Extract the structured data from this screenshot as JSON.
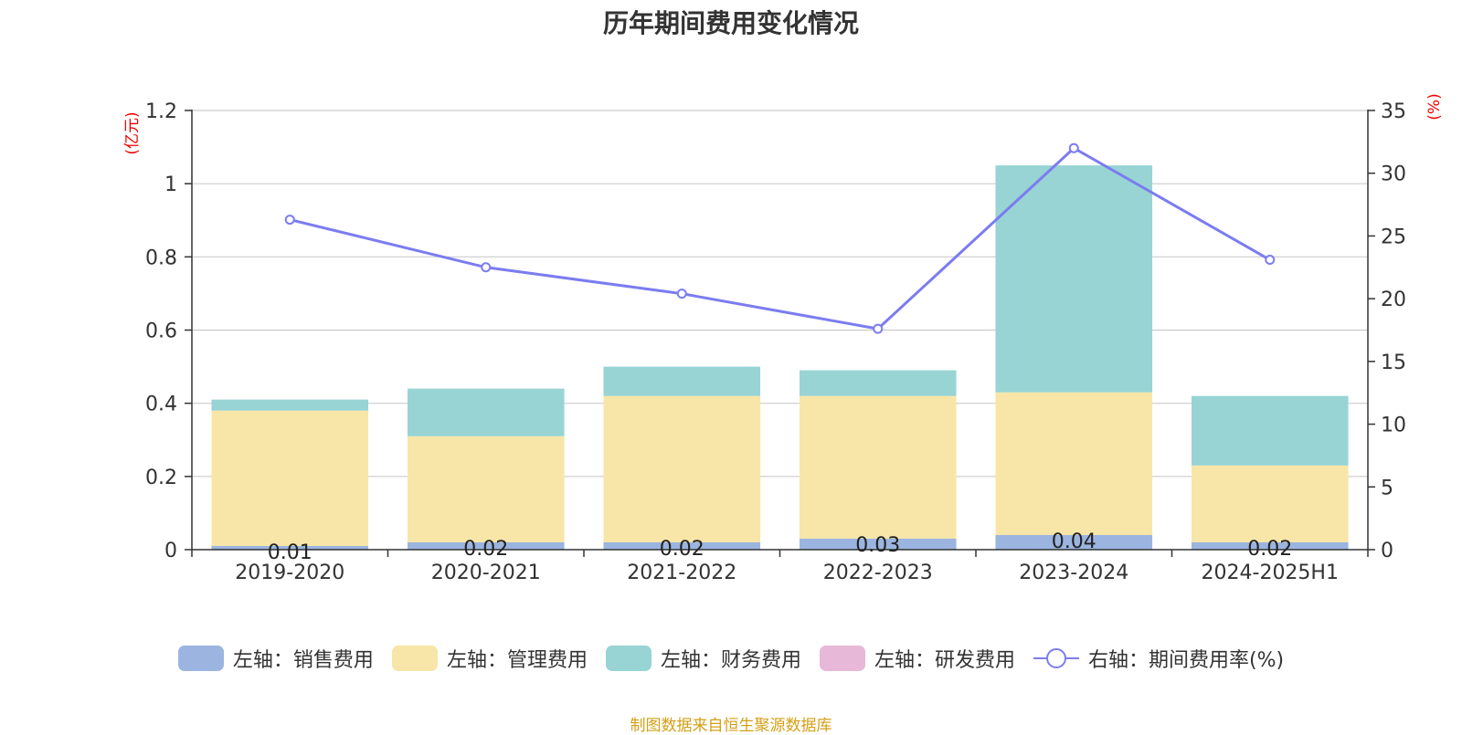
{
  "chart_data": {
    "type": "bar",
    "title": "历年期间费用变化情况",
    "categories": [
      "2019-2020",
      "2020-2021",
      "2021-2022",
      "2022-2023",
      "2023-2024",
      "2024-2025H1"
    ],
    "left_axis": {
      "label": "(亿元)",
      "ylim": [
        0,
        1.2
      ],
      "ticks": [
        "0",
        "0.2",
        "0.4",
        "0.6",
        "0.8",
        "1",
        "1.2"
      ]
    },
    "right_axis": {
      "label": "(%)",
      "ylim": [
        0,
        35
      ],
      "ticks": [
        "0",
        "5",
        "10",
        "15",
        "20",
        "25",
        "30",
        "35"
      ]
    },
    "series": [
      {
        "name": "左轴：销售费用",
        "values": [
          0.01,
          0.02,
          0.02,
          0.03,
          0.04,
          0.02
        ],
        "color": "#9bb5e0",
        "labels": [
          "0.01",
          "0.02",
          "0.02",
          "0.03",
          "0.04",
          "0.02"
        ]
      },
      {
        "name": "左轴：管理费用",
        "values": [
          0.37,
          0.29,
          0.4,
          0.39,
          0.39,
          0.21
        ],
        "color": "#f7e6a8"
      },
      {
        "name": "左轴：财务费用",
        "values": [
          0.03,
          0.13,
          0.08,
          0.07,
          0.62,
          0.19
        ],
        "color": "#98d4d4"
      },
      {
        "name": "左轴：研发费用",
        "values": [
          0,
          0,
          0,
          0,
          0,
          0
        ],
        "color": "#e8b8d8"
      },
      {
        "name": "右轴：期间费用率(%)",
        "type": "line",
        "axis": "right",
        "values": [
          26.3,
          22.5,
          20.4,
          17.6,
          32.0,
          23.1
        ],
        "color": "#7b7cf0"
      }
    ],
    "grid": true,
    "legend_position": "bottom"
  },
  "source_text": "制图数据来自恒生聚源数据库"
}
